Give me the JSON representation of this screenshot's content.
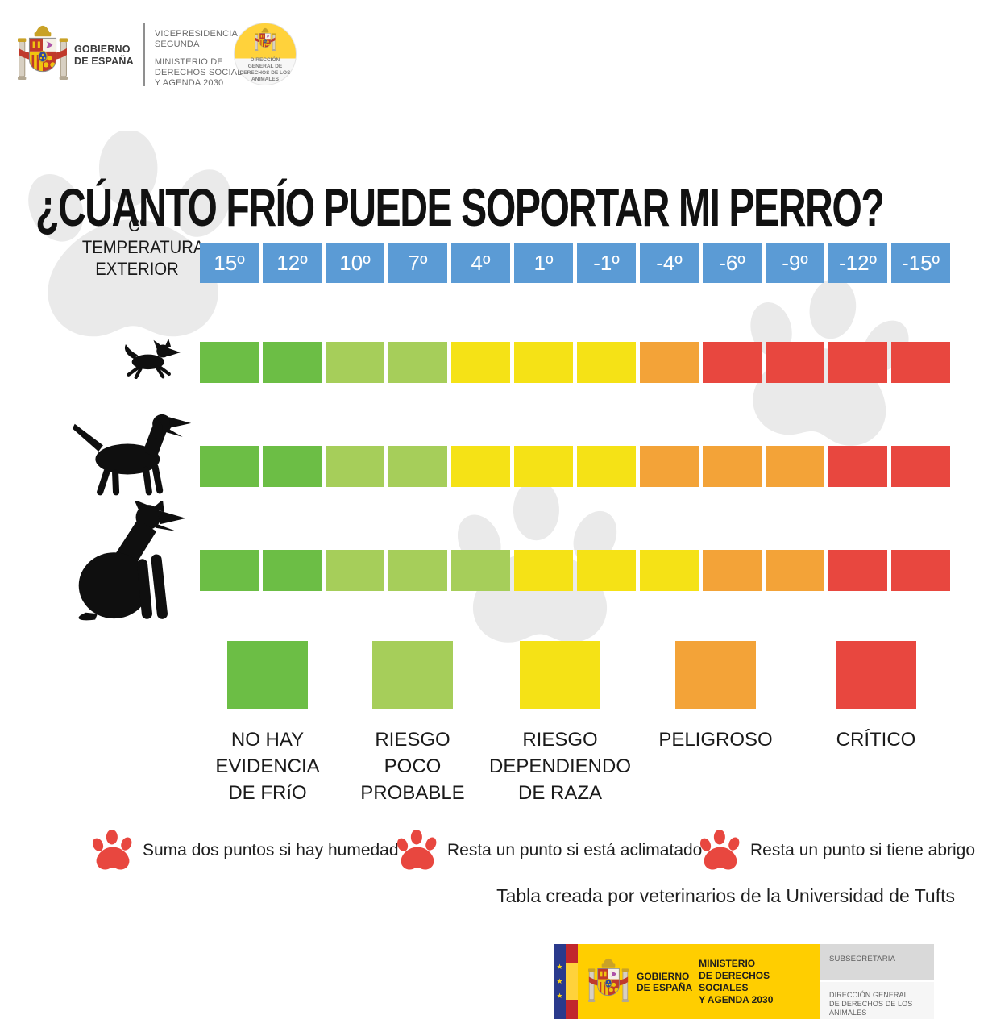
{
  "colors": {
    "blue": "#5B9BD5",
    "green": "#6CBE45",
    "light_green": "#A6CE5A",
    "yellow": "#F5E216",
    "orange": "#F3A338",
    "red": "#E8473F",
    "watermark_gray": "#EAEAEA",
    "note_paw_red": "#E8473F",
    "footer_yellow": "#FFCE00",
    "eu_blue": "#2A3A8C"
  },
  "header": {
    "gobierno_line1": "GOBIERNO",
    "gobierno_line2": "DE ESPAÑA",
    "vicepresidencia_line1": "VICEPRESIDENCIA",
    "vicepresidencia_line2": "SEGUNDA",
    "ministerio_line1": "MINISTERIO DE",
    "ministerio_line2": "DERECHOS SOCIALES",
    "ministerio_line3": "Y AGENDA 2030",
    "badge_line1": "DIRECCIÓN",
    "badge_line2": "GENERAL DE",
    "badge_line3": "DERECHOS DE LOS",
    "badge_line4": "ANIMALES"
  },
  "title": "¿CÚANTO FRÍO PUEDE SOPORTAR MI PERRO?",
  "axis_label_lines": [
    "Cº",
    "TEMPERATURA",
    "EXTERIOR"
  ],
  "chart_data": {
    "type": "heatmap",
    "title": "¿CÚANTO FRÍO PUEDE SOPORTAR MI PERRO?",
    "x_axis_label": "Cº TEMPERATURA EXTERIOR",
    "x_categories": [
      "15º",
      "12º",
      "10º",
      "7º",
      "4º",
      "1º",
      "-1º",
      "-4º",
      "-6º",
      "-9º",
      "-12º",
      "-15º"
    ],
    "rows": [
      {
        "icon": "small-dog-icon",
        "name": "perro pequeño",
        "cells": [
          "green",
          "green",
          "light_green",
          "light_green",
          "yellow",
          "yellow",
          "yellow",
          "orange",
          "red",
          "red",
          "red",
          "red"
        ]
      },
      {
        "icon": "medium-dog-icon",
        "name": "perro mediano",
        "cells": [
          "green",
          "green",
          "light_green",
          "light_green",
          "yellow",
          "yellow",
          "yellow",
          "orange",
          "orange",
          "orange",
          "red",
          "red"
        ]
      },
      {
        "icon": "large-dog-icon",
        "name": "perro grande",
        "cells": [
          "green",
          "green",
          "light_green",
          "light_green",
          "light_green",
          "yellow",
          "yellow",
          "yellow",
          "orange",
          "orange",
          "red",
          "red"
        ]
      }
    ],
    "legend_position": "bottom",
    "legend": [
      {
        "color": "green",
        "label_lines": [
          "NO HAY",
          "EVIDENCIA",
          "DE FRíO"
        ]
      },
      {
        "color": "light_green",
        "label_lines": [
          "RIESGO",
          "POCO",
          "PROBABLE"
        ]
      },
      {
        "color": "yellow",
        "label_lines": [
          "RIESGO",
          "DEPENDIENDO",
          "DE RAZA"
        ]
      },
      {
        "color": "orange",
        "label_lines": [
          "PELIGROSO"
        ]
      },
      {
        "color": "red",
        "label_lines": [
          "CRÍTICO"
        ]
      }
    ]
  },
  "notes": [
    "Suma dos puntos si hay humedad",
    "Resta un punto si está aclimatado",
    "Resta un punto si tiene abrigo"
  ],
  "credit": "Tabla creada por veterinarios de la Universidad de Tufts",
  "footer": {
    "gobierno_line1": "GOBIERNO",
    "gobierno_line2": "DE ESPAÑA",
    "ministerio_line1": "MINISTERIO",
    "ministerio_line2": "DE DERECHOS SOCIALES",
    "ministerio_line3": "Y AGENDA 2030",
    "subsecretaria": "SUBSECRETARÍA",
    "direccion_line1": "DIRECCIÓN GENERAL",
    "direccion_line2": "DE DERECHOS DE LOS ANIMALES"
  }
}
